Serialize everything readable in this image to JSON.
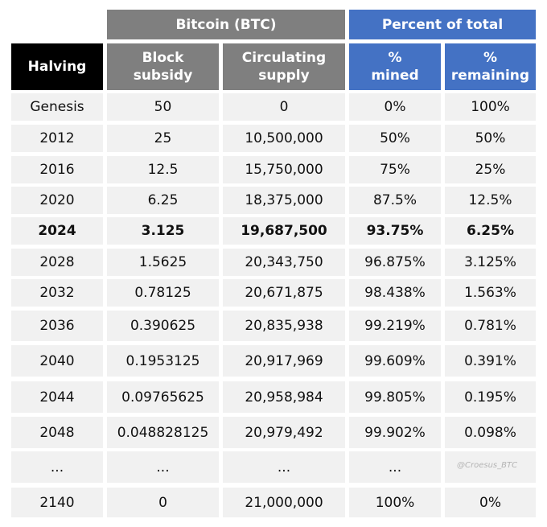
{
  "group_headers": {
    "bitcoin": "Bitcoin (BTC)",
    "percent": "Percent of total"
  },
  "column_headers": {
    "halving": "Halving",
    "block_subsidy": "Block\nsubsidy",
    "circulating_supply": "Circulating\nsupply",
    "pct_mined": "%\nmined",
    "pct_remaining": "%\nremaining"
  },
  "rows": [
    {
      "halving": "Genesis",
      "subsidy": "50",
      "supply": "0",
      "mined": "0%",
      "remaining": "100%"
    },
    {
      "halving": "2012",
      "subsidy": "25",
      "supply": "10,500,000",
      "mined": "50%",
      "remaining": "50%"
    },
    {
      "halving": "2016",
      "subsidy": "12.5",
      "supply": "15,750,000",
      "mined": "75%",
      "remaining": "25%"
    },
    {
      "halving": "2020",
      "subsidy": "6.25",
      "supply": "18,375,000",
      "mined": "87.5%",
      "remaining": "12.5%"
    },
    {
      "halving": "2024",
      "subsidy": "3.125",
      "supply": "19,687,500",
      "mined": "93.75%",
      "remaining": "6.25%",
      "highlight": true
    },
    {
      "halving": "2028",
      "subsidy": "1.5625",
      "supply": "20,343,750",
      "mined": "96.875%",
      "remaining": "3.125%"
    },
    {
      "halving": "2032",
      "subsidy": "0.78125",
      "supply": "20,671,875",
      "mined": "98.438%",
      "remaining": "1.563%"
    },
    {
      "halving": "2036",
      "subsidy": "0.390625",
      "supply": "20,835,938",
      "mined": "99.219%",
      "remaining": "0.781%"
    },
    {
      "halving": "2040",
      "subsidy": "0.1953125",
      "supply": "20,917,969",
      "mined": "99.609%",
      "remaining": "0.391%"
    },
    {
      "halving": "2044",
      "subsidy": "0.09765625",
      "supply": "20,958,984",
      "mined": "99.805%",
      "remaining": "0.195%"
    },
    {
      "halving": "2048",
      "subsidy": "0.048828125",
      "supply": "20,979,492",
      "mined": "99.902%",
      "remaining": "0.098%"
    },
    {
      "halving": "...",
      "subsidy": "...",
      "supply": "...",
      "mined": "...",
      "remaining": ""
    },
    {
      "halving": "2140",
      "subsidy": "0",
      "supply": "21,000,000",
      "mined": "100%",
      "remaining": "0%"
    }
  ],
  "watermark": "@Croesus_BTC"
}
